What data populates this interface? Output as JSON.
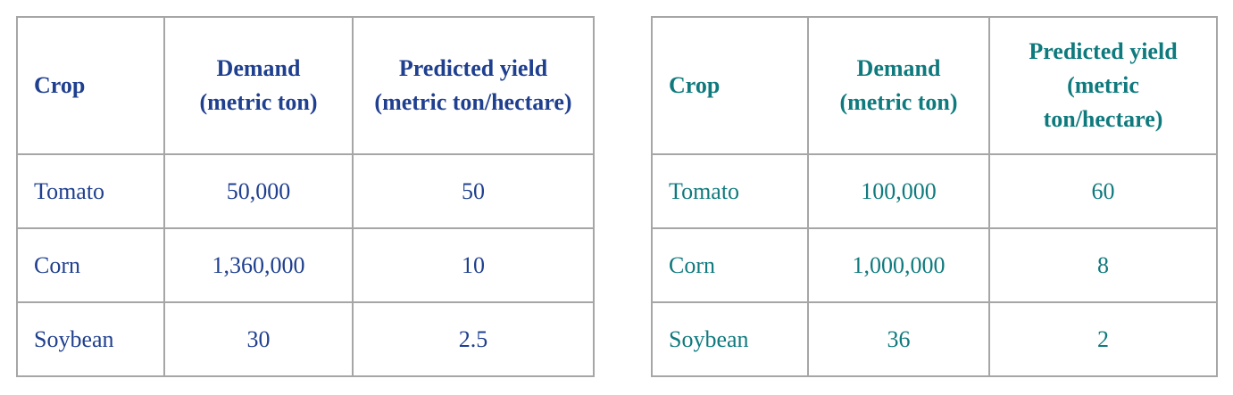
{
  "tables": [
    {
      "headers": [
        "Crop",
        "Demand (metric ton)",
        "Predicted yield (metric ton/hectare)"
      ],
      "rows": [
        [
          "Tomato",
          "50,000",
          "50"
        ],
        [
          "Corn",
          "1,360,000",
          "10"
        ],
        [
          "Soybean",
          "30",
          "2.5"
        ]
      ],
      "color": "#1f3f8f"
    },
    {
      "headers": [
        "Crop",
        "Demand (metric ton)",
        "Predicted yield (metric ton/hectare)"
      ],
      "rows": [
        [
          "Tomato",
          "100,000",
          "60"
        ],
        [
          "Corn",
          "1,000,000",
          "8"
        ],
        [
          "Soybean",
          "36",
          "2"
        ]
      ],
      "color": "#0f7a7d"
    }
  ]
}
